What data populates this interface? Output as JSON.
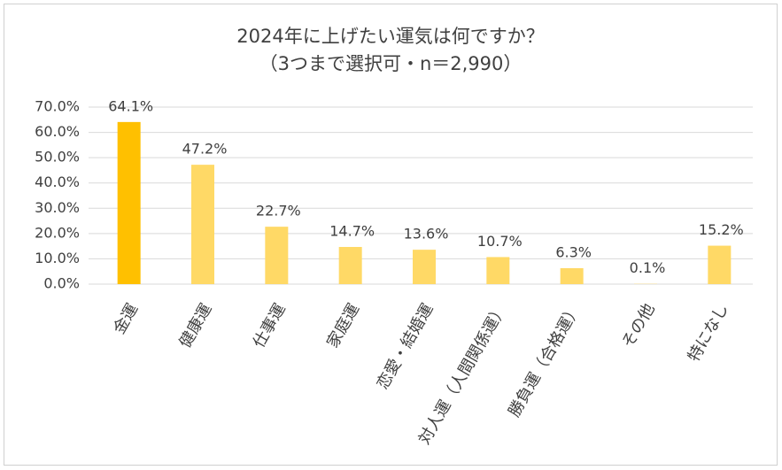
{
  "chart_data": {
    "type": "bar",
    "title": "2024年に上げたい運気は何ですか？",
    "subtitle": "（3つまで選択可・n＝2,990）",
    "categories": [
      "金運",
      "健康運",
      "仕事運",
      "家庭運",
      "恋愛・結婚運",
      "対人運（人間関係運）",
      "勝負運（合格運）",
      "その他",
      "特になし"
    ],
    "values": [
      64.1,
      47.2,
      22.7,
      14.7,
      13.6,
      10.7,
      6.3,
      0.1,
      15.2
    ],
    "value_labels": [
      "64.1%",
      "47.2%",
      "22.7%",
      "14.7%",
      "13.6%",
      "10.7%",
      "6.3%",
      "0.1%",
      "15.2%"
    ],
    "colors": [
      "#ffc000",
      "#ffd966",
      "#ffd966",
      "#ffd966",
      "#ffd966",
      "#ffd966",
      "#ffd966",
      "#ffd966",
      "#ffd966"
    ],
    "ylim": [
      0,
      70
    ],
    "yticks": [
      {
        "value": 0,
        "label": "0.0%"
      },
      {
        "value": 10,
        "label": "10.0%"
      },
      {
        "value": 20,
        "label": "20.0%"
      },
      {
        "value": 30,
        "label": "30.0%"
      },
      {
        "value": 40,
        "label": "40.0%"
      },
      {
        "value": 50,
        "label": "50.0%"
      },
      {
        "value": 60,
        "label": "60.0%"
      },
      {
        "value": 70,
        "label": "70.0%"
      }
    ],
    "grid": true
  }
}
